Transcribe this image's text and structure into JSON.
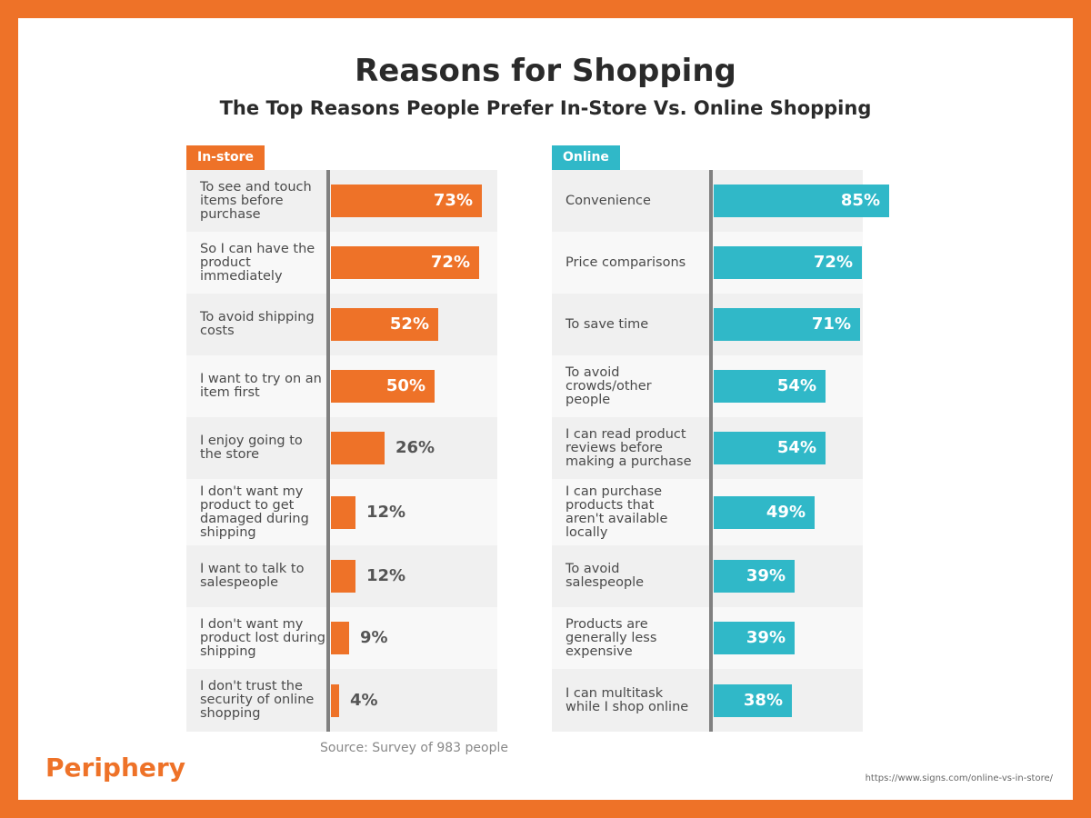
{
  "title": "Reasons for Shopping",
  "subtitle": "The Top Reasons People Prefer In-Store Vs. Online Shopping",
  "source": "Source: Survey of 983 people",
  "logo": "Periphery",
  "url": "https://www.signs.com/online-vs-in-store/",
  "colors": {
    "frame": "#ee7228",
    "instore": "#ee7228",
    "online": "#30b8c8"
  },
  "chart_data": [
    {
      "type": "bar",
      "orientation": "horizontal",
      "series_tag": "In-store",
      "color": "#ee7228",
      "categories": [
        "To see and touch items before purchase",
        "So I can have the product immediately",
        "To avoid shipping costs",
        "I want to try on an item first",
        "I enjoy going to the store",
        "I don't want my product to get damaged during shipping",
        "I want to talk to salespeople",
        "I don't want my product lost during shipping",
        "I don't trust the security of online shopping"
      ],
      "values": [
        73,
        72,
        52,
        50,
        26,
        12,
        12,
        9,
        4
      ],
      "labels": [
        "73%",
        "72%",
        "52%",
        "50%",
        "26%",
        "12%",
        "12%",
        "9%",
        "4%"
      ]
    },
    {
      "type": "bar",
      "orientation": "horizontal",
      "series_tag": "Online",
      "color": "#30b8c8",
      "categories": [
        "Convenience",
        "Price comparisons",
        "To save time",
        "To avoid crowds/other people",
        "I can read product reviews before making a purchase",
        "I can purchase products that aren't available locally",
        "To avoid salespeople",
        "Products are generally less expensive",
        "I can multitask while I shop online"
      ],
      "values": [
        85,
        72,
        71,
        54,
        54,
        49,
        39,
        39,
        38
      ],
      "labels": [
        "85%",
        "72%",
        "71%",
        "54%",
        "54%",
        "49%",
        "39%",
        "39%",
        "38%"
      ]
    }
  ]
}
